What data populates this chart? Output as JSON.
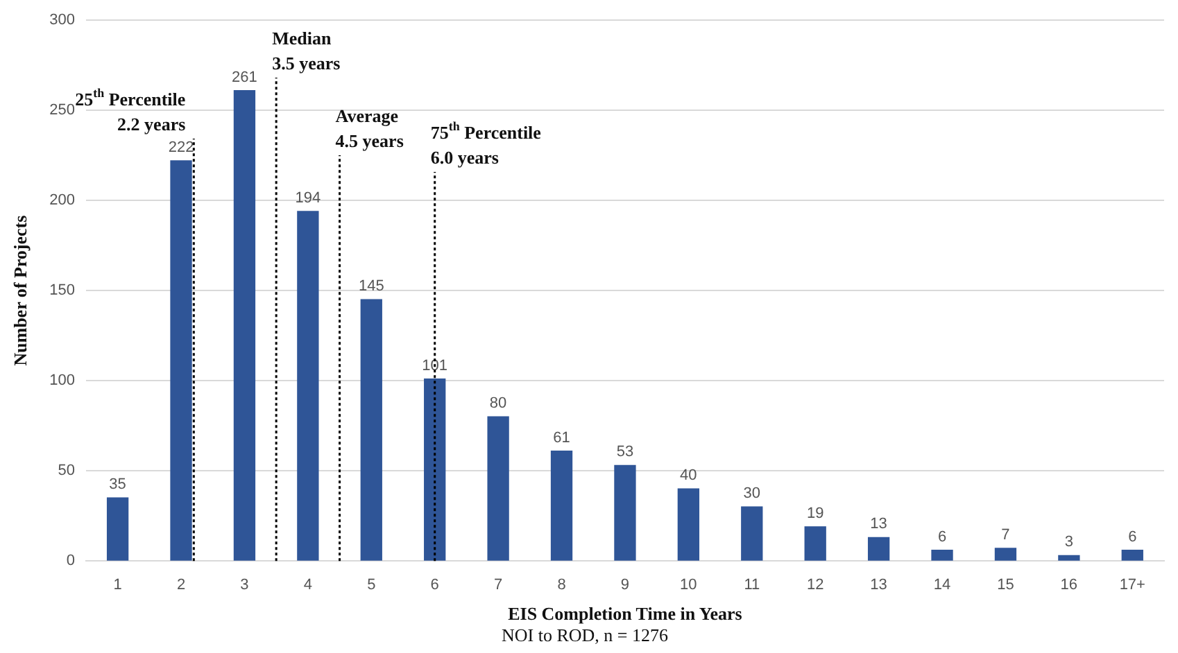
{
  "chart_data": {
    "type": "bar",
    "xlabel": "EIS Completion Time in Years",
    "ylabel": "Number of Projects",
    "x": [
      1,
      2,
      3,
      4,
      5,
      6,
      7,
      8,
      9,
      10,
      11,
      12,
      13,
      14,
      15,
      16,
      17
    ],
    "xlim": [
      0.5,
      17.5
    ],
    "xticks": [
      1,
      2,
      3,
      4,
      5,
      6,
      7,
      8,
      9,
      10,
      11,
      12,
      13,
      14,
      15,
      16,
      {
        "value": 17,
        "label": "17+"
      }
    ],
    "values": [
      35,
      222,
      261,
      194,
      145,
      101,
      80,
      61,
      53,
      40,
      30,
      19,
      13,
      6,
      7,
      3,
      6
    ],
    "color": "#2f5597",
    "ylim": [
      0,
      300
    ],
    "yticks": [
      0,
      50,
      100,
      150,
      200,
      250,
      300
    ],
    "grid": "y",
    "data_labels": true,
    "legend": false,
    "ref_lines": [
      {
        "axis": "x",
        "value": 2.2,
        "label": "25$^{th}$ Percentile\n2.2 years",
        "line_style": "dotted",
        "color": "#000000"
      },
      {
        "axis": "x",
        "value": 3.5,
        "label": "Median\n3.5 years",
        "line_style": "dotted",
        "color": "#000000"
      },
      {
        "axis": "x",
        "value": 4.5,
        "label": "Average\n4.5 years",
        "line_style": "dotted",
        "color": "#000000"
      },
      {
        "axis": "x",
        "value": 6.0,
        "label": "75$^{th}$ Percentile\n6.0 years",
        "line_style": "dotted",
        "color": "#000000"
      }
    ],
    "annotations": [
      "NOI to ROD, n = 1276"
    ]
  }
}
